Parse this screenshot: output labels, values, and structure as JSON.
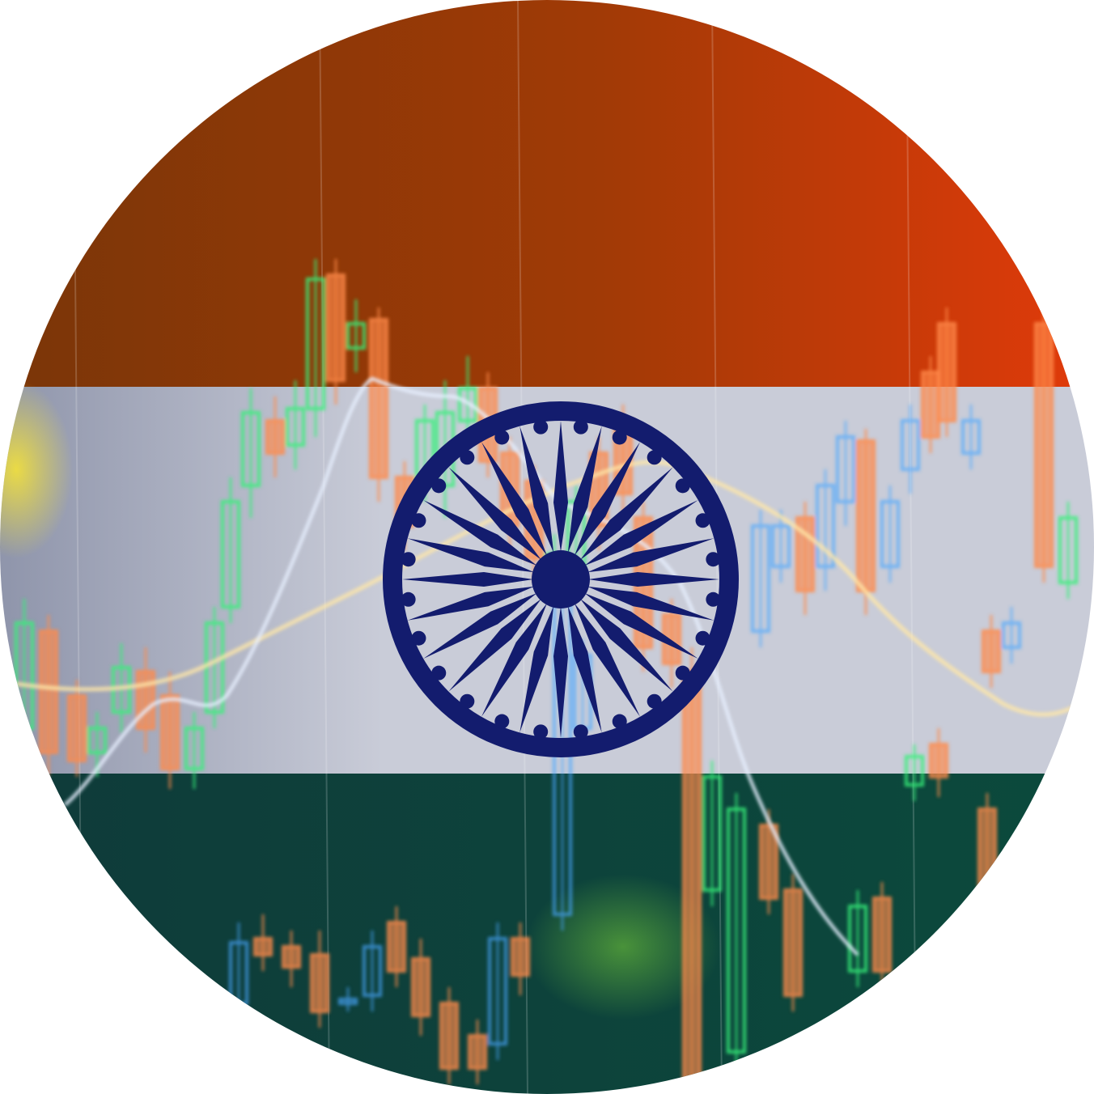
{
  "image": {
    "subject": "india-flag-stock-chart-badge",
    "shape": "circle",
    "background": "#ffffff"
  },
  "flag": {
    "colors": {
      "saffron_dark": "#7a3608",
      "saffron_mid": "#a13a06",
      "saffron_bright": "#e13a0a",
      "white_band": "#c9ccd8",
      "white_band_edge": "#8f95ab",
      "green_dark": "#0f3b3a",
      "green_mid": "#0b4a3c",
      "chakra_navy": "#131c6e"
    },
    "chakra": {
      "spokes": 24
    }
  },
  "overlay": {
    "candle_up_color": "#38f07a",
    "candle_down_color": "#ff8a4a",
    "candle_blue_color": "#4aa7ff",
    "line_white_color": "#e8f0ff",
    "line_cream_color": "#ffe7a8",
    "glow_yellow_color": "#f4e23a",
    "glow_green_color": "#7ad23a"
  }
}
